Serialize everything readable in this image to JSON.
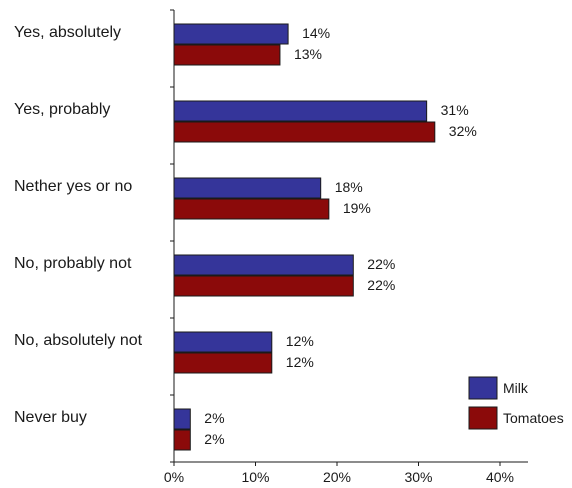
{
  "chart_data": {
    "type": "bar",
    "orientation": "horizontal",
    "categories": [
      "Yes, absolutely",
      "Yes, probably",
      "Nether yes or no",
      "No, probably not",
      "No, absolutely not",
      "Never buy"
    ],
    "series": [
      {
        "name": "Milk",
        "color": "#35359a",
        "values": [
          14,
          31,
          18,
          22,
          12,
          2
        ],
        "labels": [
          "14%",
          "31%",
          "18%",
          "22%",
          "12%",
          "2%"
        ]
      },
      {
        "name": "Tomatoes",
        "color": "#8b0a0a",
        "values": [
          13,
          32,
          19,
          22,
          12,
          2
        ],
        "labels": [
          "13%",
          "32%",
          "19%",
          "22%",
          "12%",
          "2%"
        ]
      }
    ],
    "xlim": [
      0,
      40
    ],
    "xticks": [
      0,
      10,
      20,
      30,
      40
    ],
    "xtick_labels": [
      "0%",
      "10%",
      "20%",
      "30%",
      "40%"
    ],
    "grid": false,
    "legend_position": "bottom-right"
  }
}
